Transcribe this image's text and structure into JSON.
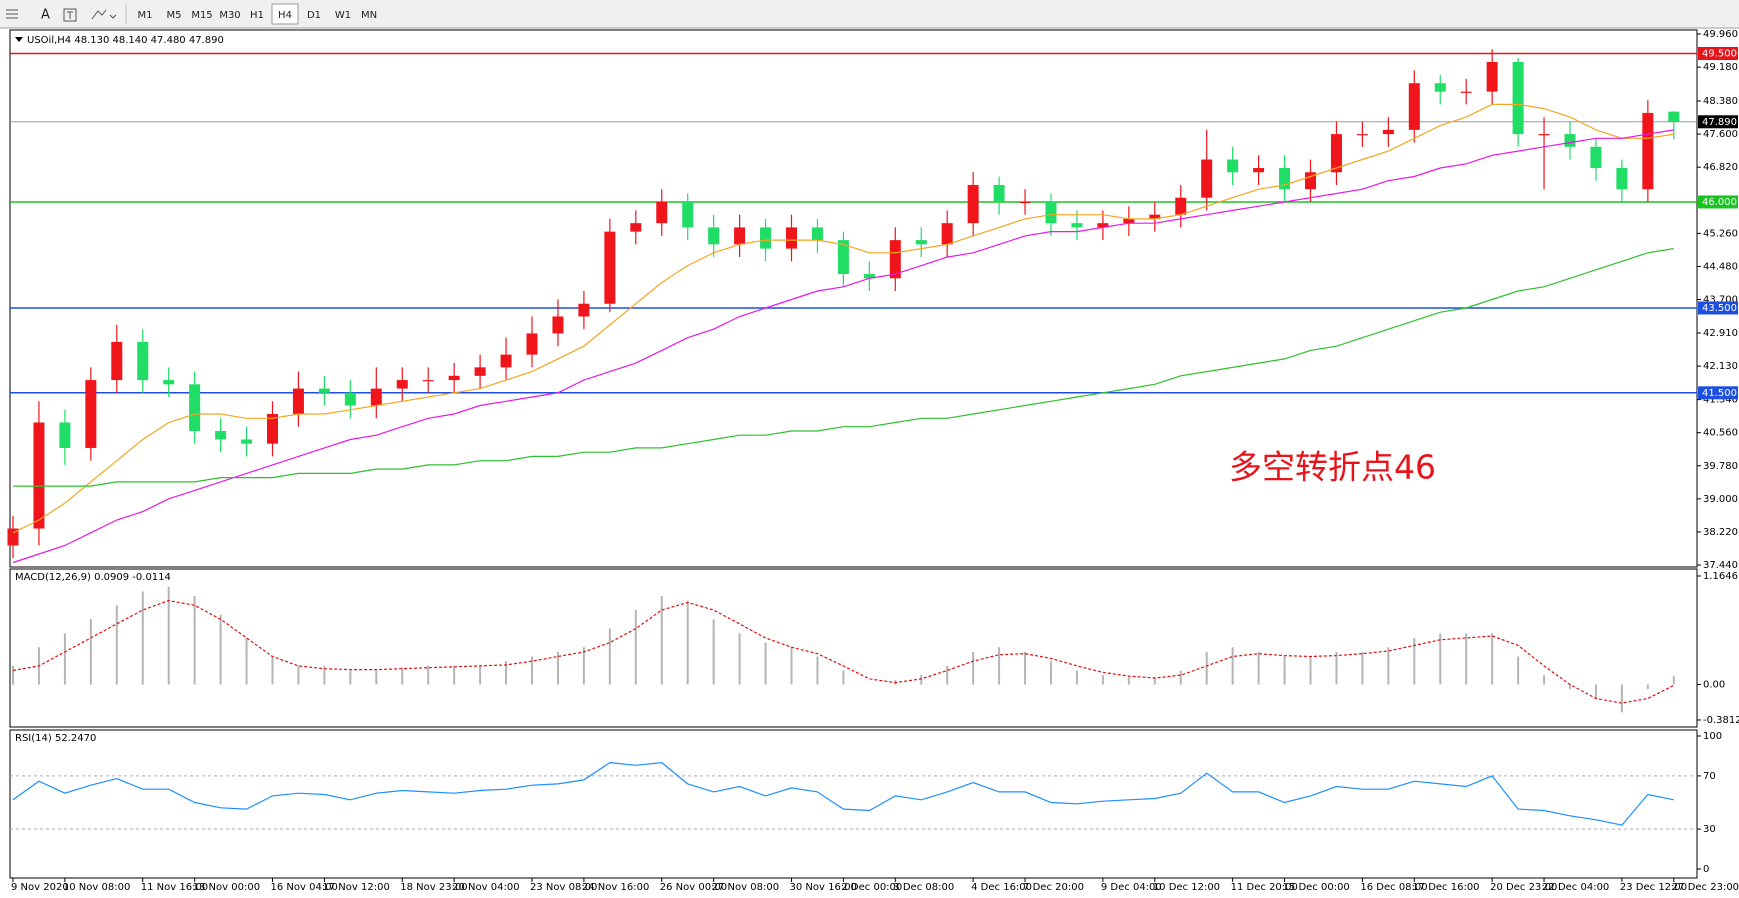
{
  "toolbar": {
    "text_tool": "A",
    "timeframes": [
      "M1",
      "M5",
      "M15",
      "M30",
      "H1",
      "H4",
      "D1",
      "W1",
      "MN"
    ],
    "active": 5
  },
  "chart_data": {
    "type": "candlestick",
    "title": "USOil,H4  48.130 48.140 47.480 47.890",
    "categories": [
      "9 Nov 2020",
      null,
      "10 Nov 08:00",
      null,
      null,
      "11 Nov 16:00",
      null,
      "13 Nov 00:00",
      null,
      null,
      "16 Nov 04:00",
      null,
      "17 Nov 12:00",
      null,
      null,
      "18 Nov 23:00",
      null,
      "20 Nov 04:00",
      null,
      null,
      "23 Nov 08:00",
      null,
      "24 Nov 16:00",
      null,
      null,
      "26 Nov 00:00",
      null,
      "27 Nov 08:00",
      null,
      null,
      "30 Nov 16:00",
      null,
      "2 Dec 00:00",
      null,
      "3 Dec 08:00",
      null,
      null,
      "4 Dec 16:00",
      null,
      "7 Dec 20:00",
      null,
      null,
      "9 Dec 04:00",
      null,
      "10 Dec 12:00",
      null,
      null,
      "11 Dec 20:00",
      null,
      "15 Dec 00:00",
      null,
      null,
      "16 Dec 08:00",
      null,
      "17 Dec 16:00",
      null,
      null,
      "20 Dec 23:00",
      null,
      "22 Dec 04:00",
      null,
      null,
      "23 Dec 12:00",
      null,
      "27 Dec 23:00"
    ],
    "open": [
      37.9,
      38.3,
      40.8,
      40.2,
      41.8,
      42.7,
      41.8,
      41.7,
      40.6,
      40.4,
      40.3,
      41.0,
      41.6,
      41.5,
      41.2,
      41.6,
      41.8,
      41.8,
      41.9,
      42.1,
      42.4,
      42.9,
      43.3,
      43.6,
      45.3,
      45.5,
      46.0,
      45.4,
      45.0,
      45.4,
      44.9,
      45.4,
      45.1,
      44.3,
      44.2,
      45.1,
      45.0,
      45.5,
      46.4,
      46.0,
      46.0,
      45.5,
      45.4,
      45.5,
      45.6,
      45.7,
      46.1,
      47.0,
      46.7,
      46.8,
      46.3,
      46.7,
      47.6,
      47.6,
      47.7,
      48.8,
      48.6,
      48.6,
      49.3,
      47.6,
      47.6,
      47.3,
      46.8,
      46.3,
      48.13
    ],
    "high": [
      38.6,
      41.3,
      41.1,
      42.1,
      43.1,
      43.0,
      42.1,
      42.0,
      40.9,
      40.7,
      41.3,
      42.0,
      41.9,
      41.8,
      42.1,
      42.1,
      42.1,
      42.2,
      42.4,
      42.8,
      43.3,
      43.7,
      43.9,
      45.6,
      45.8,
      46.3,
      46.2,
      45.7,
      45.7,
      45.6,
      45.7,
      45.6,
      45.3,
      44.6,
      45.4,
      45.4,
      45.8,
      46.7,
      46.6,
      46.3,
      46.2,
      45.8,
      45.8,
      45.9,
      46.0,
      46.4,
      47.7,
      47.3,
      47.1,
      47.1,
      47.0,
      47.9,
      47.9,
      48.0,
      49.1,
      49.0,
      48.9,
      49.6,
      49.4,
      48.0,
      47.9,
      47.5,
      47.0,
      48.4,
      48.14
    ],
    "low": [
      37.6,
      37.9,
      39.8,
      39.9,
      41.5,
      41.5,
      41.4,
      40.3,
      40.1,
      40.0,
      40.0,
      40.7,
      41.2,
      40.9,
      40.9,
      41.3,
      41.5,
      41.5,
      41.6,
      41.8,
      42.1,
      42.6,
      43.0,
      43.4,
      45.0,
      45.2,
      45.1,
      44.7,
      44.7,
      44.6,
      44.6,
      44.8,
      44.0,
      43.9,
      43.9,
      44.7,
      44.7,
      45.2,
      45.7,
      45.7,
      45.2,
      45.1,
      45.1,
      45.2,
      45.3,
      45.4,
      45.8,
      46.4,
      46.4,
      46.0,
      46.0,
      46.4,
      47.3,
      47.3,
      47.4,
      48.3,
      48.3,
      48.3,
      47.3,
      46.3,
      47.0,
      46.5,
      46.0,
      46.0,
      47.48
    ],
    "close": [
      38.3,
      40.8,
      40.2,
      41.8,
      42.7,
      41.8,
      41.7,
      40.6,
      40.4,
      40.3,
      41.0,
      41.6,
      41.5,
      41.2,
      41.6,
      41.8,
      41.8,
      41.9,
      42.1,
      42.4,
      42.9,
      43.3,
      43.6,
      45.3,
      45.5,
      46.0,
      45.4,
      45.0,
      45.4,
      44.9,
      45.4,
      45.1,
      44.3,
      44.2,
      45.1,
      45.0,
      45.5,
      46.4,
      46.0,
      46.0,
      45.5,
      45.4,
      45.5,
      45.6,
      45.7,
      46.1,
      47.0,
      46.7,
      46.8,
      46.3,
      46.7,
      47.6,
      47.6,
      47.7,
      48.8,
      48.6,
      48.6,
      49.3,
      47.6,
      47.6,
      47.3,
      46.8,
      46.3,
      48.1,
      47.89
    ],
    "up_color": "#f0151b",
    "down_color": "#20dd66",
    "ylim": [
      37.44,
      49.96
    ],
    "yticks": [
      {
        "value": 49.96,
        "label": "49.960"
      },
      {
        "value": 49.18,
        "label": "49.180"
      },
      {
        "value": 48.38,
        "label": "48.380"
      },
      {
        "value": 47.6,
        "label": "47.600"
      },
      {
        "value": 46.82,
        "label": "46.820"
      },
      {
        "value": 45.26,
        "label": "45.260"
      },
      {
        "value": 44.48,
        "label": "44.480"
      },
      {
        "value": 43.7,
        "label": "43.700"
      },
      {
        "value": 42.91,
        "label": "42.910"
      },
      {
        "value": 42.13,
        "label": "42.130"
      },
      {
        "value": 41.34,
        "label": "41.340"
      },
      {
        "value": 40.56,
        "label": "40.560"
      },
      {
        "value": 39.78,
        "label": "39.780"
      },
      {
        "value": 39,
        "label": "39.000"
      },
      {
        "value": 38.22,
        "label": "38.220"
      },
      {
        "value": 37.44,
        "label": "37.440"
      }
    ],
    "levels": [
      {
        "value": 49.5,
        "label": "49.500",
        "color": "#e8141b"
      },
      {
        "value": 46,
        "label": "46.000",
        "color": "#18c41e"
      },
      {
        "value": 43.5,
        "label": "43.500",
        "color": "#1c4fe0"
      },
      {
        "value": 41.5,
        "label": "41.500",
        "color": "#1c4fe0"
      }
    ],
    "last_price": {
      "value": 47.89,
      "label": "47.890"
    },
    "moving_averages": [
      {
        "color": "#f5a623",
        "values": [
          38.2,
          38.5,
          38.9,
          39.4,
          39.9,
          40.4,
          40.8,
          41.0,
          41.0,
          40.9,
          40.9,
          41.0,
          41.0,
          41.1,
          41.2,
          41.3,
          41.4,
          41.5,
          41.6,
          41.8,
          42.0,
          42.3,
          42.6,
          43.1,
          43.6,
          44.1,
          44.5,
          44.8,
          45.0,
          45.1,
          45.1,
          45.1,
          45.0,
          44.8,
          44.8,
          44.9,
          45.0,
          45.2,
          45.4,
          45.6,
          45.7,
          45.7,
          45.7,
          45.6,
          45.6,
          45.7,
          45.9,
          46.1,
          46.3,
          46.4,
          46.6,
          46.8,
          47.0,
          47.2,
          47.5,
          47.8,
          48.0,
          48.3,
          48.3,
          48.2,
          48.0,
          47.7,
          47.5,
          47.5,
          47.6
        ]
      },
      {
        "color": "#e619e6",
        "values": [
          37.5,
          37.7,
          37.9,
          38.2,
          38.5,
          38.7,
          39.0,
          39.2,
          39.4,
          39.6,
          39.8,
          40.0,
          40.2,
          40.4,
          40.5,
          40.7,
          40.9,
          41.0,
          41.2,
          41.3,
          41.4,
          41.5,
          41.8,
          42.0,
          42.2,
          42.5,
          42.8,
          43.0,
          43.3,
          43.5,
          43.7,
          43.9,
          44.0,
          44.2,
          44.3,
          44.5,
          44.7,
          44.8,
          45.0,
          45.2,
          45.3,
          45.3,
          45.4,
          45.5,
          45.5,
          45.6,
          45.7,
          45.8,
          45.9,
          46.0,
          46.1,
          46.2,
          46.3,
          46.5,
          46.6,
          46.8,
          46.9,
          47.1,
          47.2,
          47.3,
          47.4,
          47.5,
          47.5,
          47.6,
          47.7
        ]
      },
      {
        "color": "#2fc02f",
        "values": [
          39.3,
          39.3,
          39.3,
          39.3,
          39.4,
          39.4,
          39.4,
          39.4,
          39.5,
          39.5,
          39.5,
          39.6,
          39.6,
          39.6,
          39.7,
          39.7,
          39.8,
          39.8,
          39.9,
          39.9,
          40.0,
          40.0,
          40.1,
          40.1,
          40.2,
          40.2,
          40.3,
          40.4,
          40.5,
          40.5,
          40.6,
          40.6,
          40.7,
          40.7,
          40.8,
          40.9,
          40.9,
          41.0,
          41.1,
          41.2,
          41.3,
          41.4,
          41.5,
          41.6,
          41.7,
          41.9,
          42.0,
          42.1,
          42.2,
          42.3,
          42.5,
          42.6,
          42.8,
          43.0,
          43.2,
          43.4,
          43.5,
          43.7,
          43.9,
          44.0,
          44.2,
          44.4,
          44.6,
          44.8,
          44.9
        ]
      }
    ],
    "annotation": {
      "text": "多空转折点46",
      "color": "#e8141b"
    },
    "macd": {
      "title": "MACD(12,26,9) 0.0909 -0.0114",
      "ylim": [
        -0.3812,
        1.1646
      ],
      "yticks": [
        1.1646,
        {
          "value": 0,
          "label": "0.00"
        },
        -0.3812
      ],
      "hist_color": "#b4b4b4",
      "signal_color": "#e01010",
      "histogram": [
        0.2,
        0.4,
        0.55,
        0.7,
        0.85,
        1.0,
        1.05,
        0.95,
        0.75,
        0.5,
        0.3,
        0.2,
        0.2,
        0.15,
        0.15,
        0.18,
        0.2,
        0.2,
        0.2,
        0.25,
        0.3,
        0.35,
        0.4,
        0.6,
        0.8,
        0.95,
        0.9,
        0.7,
        0.55,
        0.45,
        0.4,
        0.3,
        0.15,
        0.0,
        0.05,
        0.1,
        0.2,
        0.35,
        0.4,
        0.35,
        0.25,
        0.15,
        0.1,
        0.08,
        0.08,
        0.15,
        0.35,
        0.4,
        0.35,
        0.3,
        0.3,
        0.35,
        0.35,
        0.4,
        0.5,
        0.55,
        0.55,
        0.55,
        0.3,
        0.1,
        -0.05,
        -0.15,
        -0.3,
        -0.05,
        0.09
      ],
      "signal": [
        0.15,
        0.2,
        0.35,
        0.5,
        0.65,
        0.8,
        0.9,
        0.85,
        0.7,
        0.5,
        0.3,
        0.2,
        0.17,
        0.16,
        0.16,
        0.17,
        0.18,
        0.19,
        0.2,
        0.21,
        0.25,
        0.3,
        0.35,
        0.45,
        0.6,
        0.8,
        0.88,
        0.8,
        0.65,
        0.5,
        0.4,
        0.33,
        0.2,
        0.06,
        0.02,
        0.06,
        0.15,
        0.25,
        0.32,
        0.33,
        0.28,
        0.2,
        0.13,
        0.09,
        0.07,
        0.1,
        0.2,
        0.3,
        0.33,
        0.31,
        0.3,
        0.31,
        0.33,
        0.36,
        0.42,
        0.48,
        0.5,
        0.52,
        0.42,
        0.2,
        0.0,
        -0.15,
        -0.2,
        -0.15,
        -0.01
      ]
    },
    "rsi": {
      "title": "RSI(14) 52.2470",
      "ylim": [
        0,
        100
      ],
      "yticks": [
        100,
        70,
        30,
        0
      ],
      "color": "#1e8fff",
      "values": [
        52,
        66,
        57,
        63,
        68,
        60,
        60,
        50,
        46,
        45,
        55,
        57,
        56,
        52,
        57,
        59,
        58,
        57,
        59,
        60,
        63,
        64,
        67,
        80,
        78,
        80,
        64,
        58,
        62,
        55,
        61,
        58,
        45,
        44,
        55,
        52,
        58,
        65,
        58,
        58,
        50,
        49,
        51,
        52,
        53,
        57,
        72,
        58,
        58,
        50,
        55,
        62,
        60,
        60,
        66,
        64,
        62,
        70,
        45,
        44,
        40,
        37,
        33,
        56,
        52
      ]
    }
  }
}
